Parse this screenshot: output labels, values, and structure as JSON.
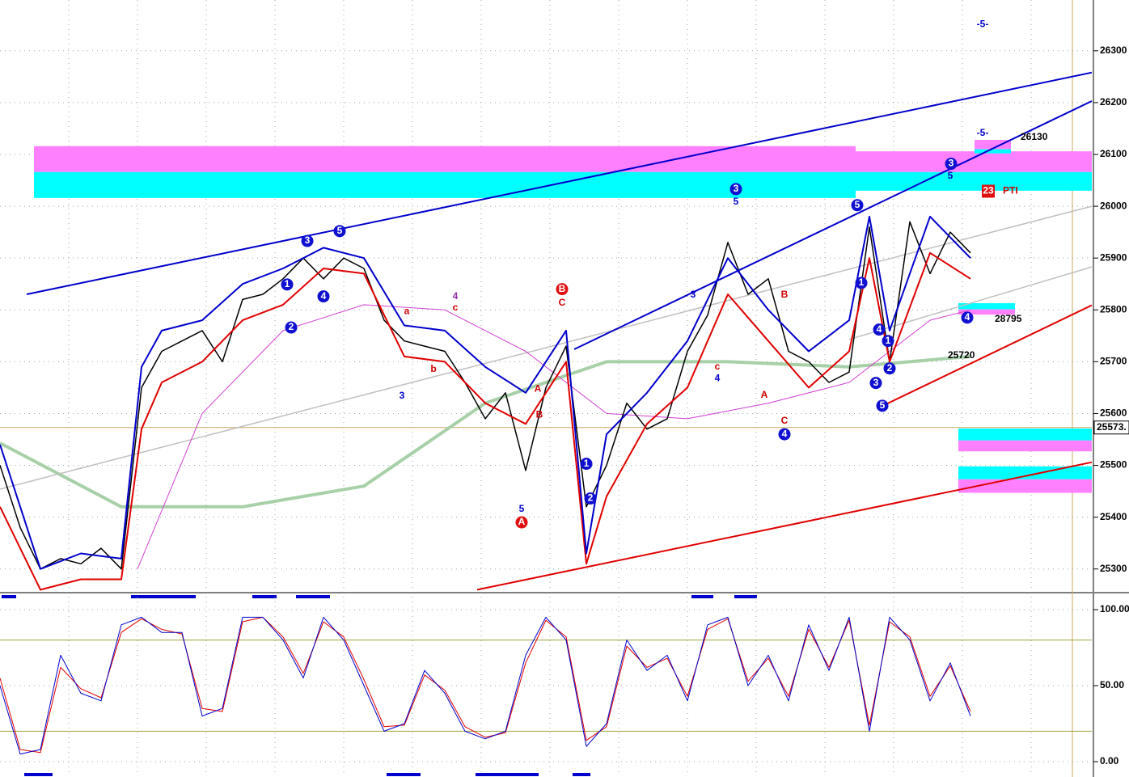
{
  "chart_data": [
    {
      "type": "line",
      "xlim": [
        0,
        270
      ],
      "ylim": [
        25259,
        26398
      ],
      "yticks": [
        25300,
        25400,
        25500,
        25600,
        25700,
        25800,
        25900,
        26000,
        26100,
        26200,
        26300
      ],
      "grid": true,
      "last": {
        "value": 25573,
        "label": "25573."
      },
      "zones": [
        {
          "color": "#ff80ff",
          "x": [
            8.4,
            211.6
          ],
          "y": [
            26066,
            26116
          ]
        },
        {
          "color": "#00ffff",
          "x": [
            8.4,
            211.6
          ],
          "y": [
            26016,
            26066
          ]
        },
        {
          "color": "#ff80ff",
          "x": [
            211.6,
            270
          ],
          "y": [
            26066,
            26106
          ]
        },
        {
          "color": "#00ffff",
          "x": [
            211.6,
            270
          ],
          "y": [
            26030,
            26066
          ]
        },
        {
          "color": "#ff80ff",
          "x": [
            241,
            250
          ],
          "y": [
            26110,
            26128
          ]
        },
        {
          "color": "#00ffff",
          "x": [
            241,
            250
          ],
          "y": [
            26102,
            26110
          ]
        },
        {
          "color": "#00ffff",
          "x": [
            237,
            270
          ],
          "y": [
            25548,
            25571
          ]
        },
        {
          "color": "#ff80ff",
          "x": [
            237,
            270
          ],
          "y": [
            25527,
            25548
          ]
        },
        {
          "color": "#00ffff",
          "x": [
            237,
            270
          ],
          "y": [
            25473,
            25498
          ]
        },
        {
          "color": "#ff80ff",
          "x": [
            237,
            270
          ],
          "y": [
            25447,
            25473
          ]
        },
        {
          "color": "#00ffff",
          "x": [
            237,
            251
          ],
          "y": [
            25801,
            25813
          ]
        },
        {
          "color": "#ff80ff",
          "x": [
            237,
            251
          ],
          "y": [
            25791,
            25801
          ]
        }
      ],
      "series": [
        {
          "color": "#a8d0a8",
          "width": 4,
          "x": [
            0,
            30,
            60,
            90,
            120,
            150,
            180,
            210,
            240
          ],
          "values": [
            25543,
            25420,
            25420,
            25460,
            25620,
            25700,
            25700,
            25690,
            25710
          ]
        },
        {
          "color": "#c0c0c0",
          "width": 1.5,
          "x": [
            0,
            270
          ],
          "values": [
            25454,
            26000
          ]
        },
        {
          "color": "#c0c0c0",
          "width": 1.5,
          "x": [
            210,
            270
          ],
          "values": [
            25743,
            25883
          ]
        },
        {
          "color": "#d040d0",
          "width": 1,
          "x": [
            34,
            50,
            70,
            90,
            110,
            130,
            150,
            170,
            190,
            210,
            230,
            240
          ],
          "values": [
            25300,
            25600,
            25760,
            25810,
            25800,
            25720,
            25600,
            25590,
            25620,
            25660,
            25780,
            25800
          ]
        },
        {
          "color": "#000000",
          "width": 1.5,
          "x": [
            0,
            5,
            10,
            15,
            20,
            25,
            30,
            35,
            40,
            45,
            50,
            55,
            60,
            65,
            70,
            75,
            80,
            85,
            90,
            95,
            100,
            105,
            110,
            115,
            120,
            125,
            130,
            135,
            140,
            145,
            150,
            155,
            160,
            165,
            170,
            175,
            180,
            185,
            190,
            195,
            200,
            205,
            210,
            215,
            220,
            225,
            230,
            235,
            240
          ],
          "values": [
            25500,
            25380,
            25300,
            25320,
            25310,
            25340,
            25300,
            25650,
            25720,
            25740,
            25760,
            25700,
            25820,
            25830,
            25860,
            25900,
            25860,
            25900,
            25880,
            25780,
            25740,
            25730,
            25720,
            25660,
            25590,
            25640,
            25490,
            25650,
            25730,
            25420,
            25500,
            25620,
            25570,
            25590,
            25720,
            25790,
            25930,
            25830,
            25860,
            25720,
            25700,
            25660,
            25680,
            25960,
            25700,
            25970,
            25870,
            25950,
            25910
          ]
        },
        {
          "color": "#e00000",
          "width": 2,
          "x": [
            0,
            10,
            20,
            30,
            35,
            40,
            50,
            60,
            70,
            80,
            90,
            100,
            110,
            120,
            130,
            140,
            145,
            150,
            160,
            170,
            180,
            190,
            200,
            210,
            215,
            220,
            230,
            240
          ],
          "values": [
            25420,
            25260,
            25280,
            25280,
            25570,
            25660,
            25700,
            25780,
            25810,
            25880,
            25870,
            25710,
            25700,
            25620,
            25580,
            25700,
            25310,
            25440,
            25580,
            25650,
            25830,
            25740,
            25650,
            25720,
            25900,
            25700,
            25910,
            25860
          ]
        },
        {
          "color": "#0000cc",
          "width": 2,
          "x": [
            0,
            10,
            20,
            30,
            35,
            40,
            50,
            60,
            70,
            80,
            90,
            100,
            110,
            120,
            130,
            140,
            145,
            150,
            160,
            170,
            180,
            190,
            200,
            210,
            215,
            220,
            230,
            240
          ],
          "values": [
            25540,
            25300,
            25330,
            25320,
            25690,
            25760,
            25780,
            25850,
            25880,
            25920,
            25900,
            25770,
            25760,
            25690,
            25640,
            25760,
            25330,
            25560,
            25640,
            25740,
            25900,
            25800,
            25720,
            25780,
            25980,
            25760,
            25980,
            25900
          ]
        },
        {
          "color": "#0000cc",
          "width": 2,
          "x": [
            6.6,
            270
          ],
          "values": [
            25830,
            26258
          ]
        },
        {
          "color": "#0000cc",
          "width": 2,
          "x": [
            142,
            270
          ],
          "values": [
            25724,
            26203
          ]
        },
        {
          "color": "#e00000",
          "width": 2,
          "x": [
            118,
            270
          ],
          "values": [
            25260,
            25506
          ]
        },
        {
          "color": "#e00000",
          "width": 2,
          "x": [
            217,
            270
          ],
          "values": [
            25610,
            25809
          ]
        }
      ],
      "annotations": [
        {
          "text": "3",
          "style": "circle-blue",
          "x": 76,
          "y": 25933
        },
        {
          "text": "5",
          "style": "circle-blue",
          "x": 84,
          "y": 25952
        },
        {
          "text": "1",
          "style": "circle-blue",
          "x": 71,
          "y": 25849
        },
        {
          "text": "2",
          "style": "circle-blue",
          "x": 72,
          "y": 25766
        },
        {
          "text": "4",
          "style": "circle-blue",
          "x": 80,
          "y": 25826
        },
        {
          "text": "B",
          "style": "circle-red",
          "x": 139,
          "y": 25840
        },
        {
          "text": "C",
          "style": "text-red",
          "x": 139,
          "y": 25813
        },
        {
          "text": "A",
          "style": "circle-red",
          "x": 129,
          "y": 25390
        },
        {
          "text": "5",
          "style": "text-blue",
          "x": 129,
          "y": 25415
        },
        {
          "text": "1",
          "style": "circle-blue",
          "x": 145,
          "y": 25503
        },
        {
          "text": "2",
          "style": "circle-blue",
          "x": 146,
          "y": 25436
        },
        {
          "text": "3",
          "style": "circle-blue",
          "x": 182,
          "y": 26033
        },
        {
          "text": "5",
          "style": "text-blue",
          "x": 182,
          "y": 26008
        },
        {
          "text": "4",
          "style": "circle-blue",
          "x": 194,
          "y": 25560
        },
        {
          "text": "C",
          "style": "text-red",
          "x": 194,
          "y": 25585
        },
        {
          "text": "A",
          "style": "text-red",
          "x": 189,
          "y": 25635
        },
        {
          "text": "B",
          "style": "text-red",
          "x": 194,
          "y": 25829
        },
        {
          "text": "5",
          "style": "circle-blue",
          "x": 212,
          "y": 26002
        },
        {
          "text": "1",
          "style": "circle-blue",
          "x": 213,
          "y": 25852
        },
        {
          "text": "3",
          "style": "circle-blue",
          "x": 216.6,
          "y": 25659
        },
        {
          "text": "5",
          "style": "circle-blue",
          "x": 218.2,
          "y": 25615
        },
        {
          "text": "4",
          "style": "circle-blue",
          "x": 217.4,
          "y": 25762
        },
        {
          "text": "2",
          "style": "circle-blue",
          "x": 220,
          "y": 25687
        },
        {
          "text": "1",
          "style": "circle-blue",
          "x": 219.6,
          "y": 25740
        },
        {
          "text": "3",
          "style": "circle-blue",
          "x": 235.2,
          "y": 26082
        },
        {
          "text": "5",
          "style": "text-blue",
          "x": 235,
          "y": 26058
        },
        {
          "text": "4",
          "style": "circle-blue",
          "x": 239.2,
          "y": 25785
        },
        {
          "text": "3",
          "style": "text-blue",
          "x": 99.4,
          "y": 25634
        },
        {
          "text": "4",
          "style": "text-purple",
          "x": 112.6,
          "y": 25826
        },
        {
          "text": "c",
          "style": "text-red",
          "x": 112.6,
          "y": 25804
        },
        {
          "text": "b",
          "style": "text-red",
          "x": 107.2,
          "y": 25685
        },
        {
          "text": "a",
          "style": "text-red",
          "x": 100.6,
          "y": 25797
        },
        {
          "text": "A",
          "style": "text-red",
          "x": 133,
          "y": 25647
        },
        {
          "text": "B",
          "style": "text-red",
          "x": 133.4,
          "y": 25597
        },
        {
          "text": "3",
          "style": "text-blue",
          "x": 171.4,
          "y": 25829
        },
        {
          "text": "c",
          "style": "text-red",
          "x": 177.4,
          "y": 25690
        },
        {
          "text": "4",
          "style": "text-blue",
          "x": 177.4,
          "y": 25667
        },
        {
          "text": "26130",
          "style": "text-black",
          "x": 252.4,
          "y": 26133
        },
        {
          "text": "28795",
          "style": "text-black",
          "x": 246,
          "y": 25782
        },
        {
          "text": "25720",
          "style": "text-black",
          "x": 234.4,
          "y": 25712
        },
        {
          "text": "23",
          "style": "box-red",
          "x": 244.4,
          "y": 26029
        },
        {
          "text": "PTI",
          "style": "text-red",
          "x": 248,
          "y": 26029
        },
        {
          "text": "-5-",
          "style": "text-blue",
          "x": 243,
          "y": 26351
        },
        {
          "text": "-5-",
          "style": "text-blue",
          "x": 243,
          "y": 26141
        }
      ]
    },
    {
      "type": "line",
      "xlim": [
        0,
        270
      ],
      "ylim": [
        -8.5,
        108.5
      ],
      "yticks": [
        {
          "value": 0,
          "label": "0.00"
        },
        {
          "value": 50,
          "label": "50.00"
        },
        {
          "value": 100,
          "label": "100.00"
        }
      ],
      "grid": true,
      "levels": [
        20,
        80
      ],
      "series": [
        {
          "color": "#e00000",
          "width": 1,
          "x": [
            0,
            5,
            10,
            15,
            20,
            25,
            30,
            35,
            40,
            45,
            50,
            55,
            60,
            65,
            70,
            75,
            80,
            85,
            90,
            95,
            100,
            105,
            110,
            115,
            120,
            125,
            130,
            135,
            140,
            145,
            150,
            155,
            160,
            165,
            170,
            175,
            180,
            185,
            190,
            195,
            200,
            205,
            210,
            215,
            220,
            225,
            230,
            235,
            240
          ],
          "values": [
            55,
            8,
            6,
            62,
            48,
            42,
            85,
            94,
            87,
            84,
            35,
            33,
            92,
            95,
            82,
            58,
            92,
            82,
            54,
            23,
            24,
            57,
            47,
            23,
            16,
            19,
            65,
            93,
            82,
            14,
            23,
            76,
            62,
            68,
            43,
            87,
            94,
            53,
            68,
            43,
            87,
            62,
            93,
            24,
            92,
            82,
            43,
            63,
            33
          ]
        },
        {
          "color": "#0000cc",
          "width": 1,
          "x": [
            0,
            5,
            10,
            15,
            20,
            25,
            30,
            35,
            40,
            45,
            50,
            55,
            60,
            65,
            70,
            75,
            80,
            85,
            90,
            95,
            100,
            105,
            110,
            115,
            120,
            125,
            130,
            135,
            140,
            145,
            150,
            155,
            160,
            165,
            170,
            175,
            180,
            185,
            190,
            195,
            200,
            205,
            210,
            215,
            220,
            225,
            230,
            235,
            240
          ],
          "values": [
            50,
            5,
            8,
            70,
            45,
            40,
            90,
            95,
            85,
            85,
            30,
            35,
            95,
            95,
            80,
            55,
            95,
            80,
            50,
            20,
            25,
            60,
            45,
            20,
            15,
            20,
            70,
            95,
            80,
            10,
            25,
            80,
            60,
            70,
            40,
            90,
            95,
            50,
            70,
            40,
            90,
            60,
            95,
            20,
            95,
            80,
            40,
            65,
            30
          ]
        }
      ]
    }
  ]
}
